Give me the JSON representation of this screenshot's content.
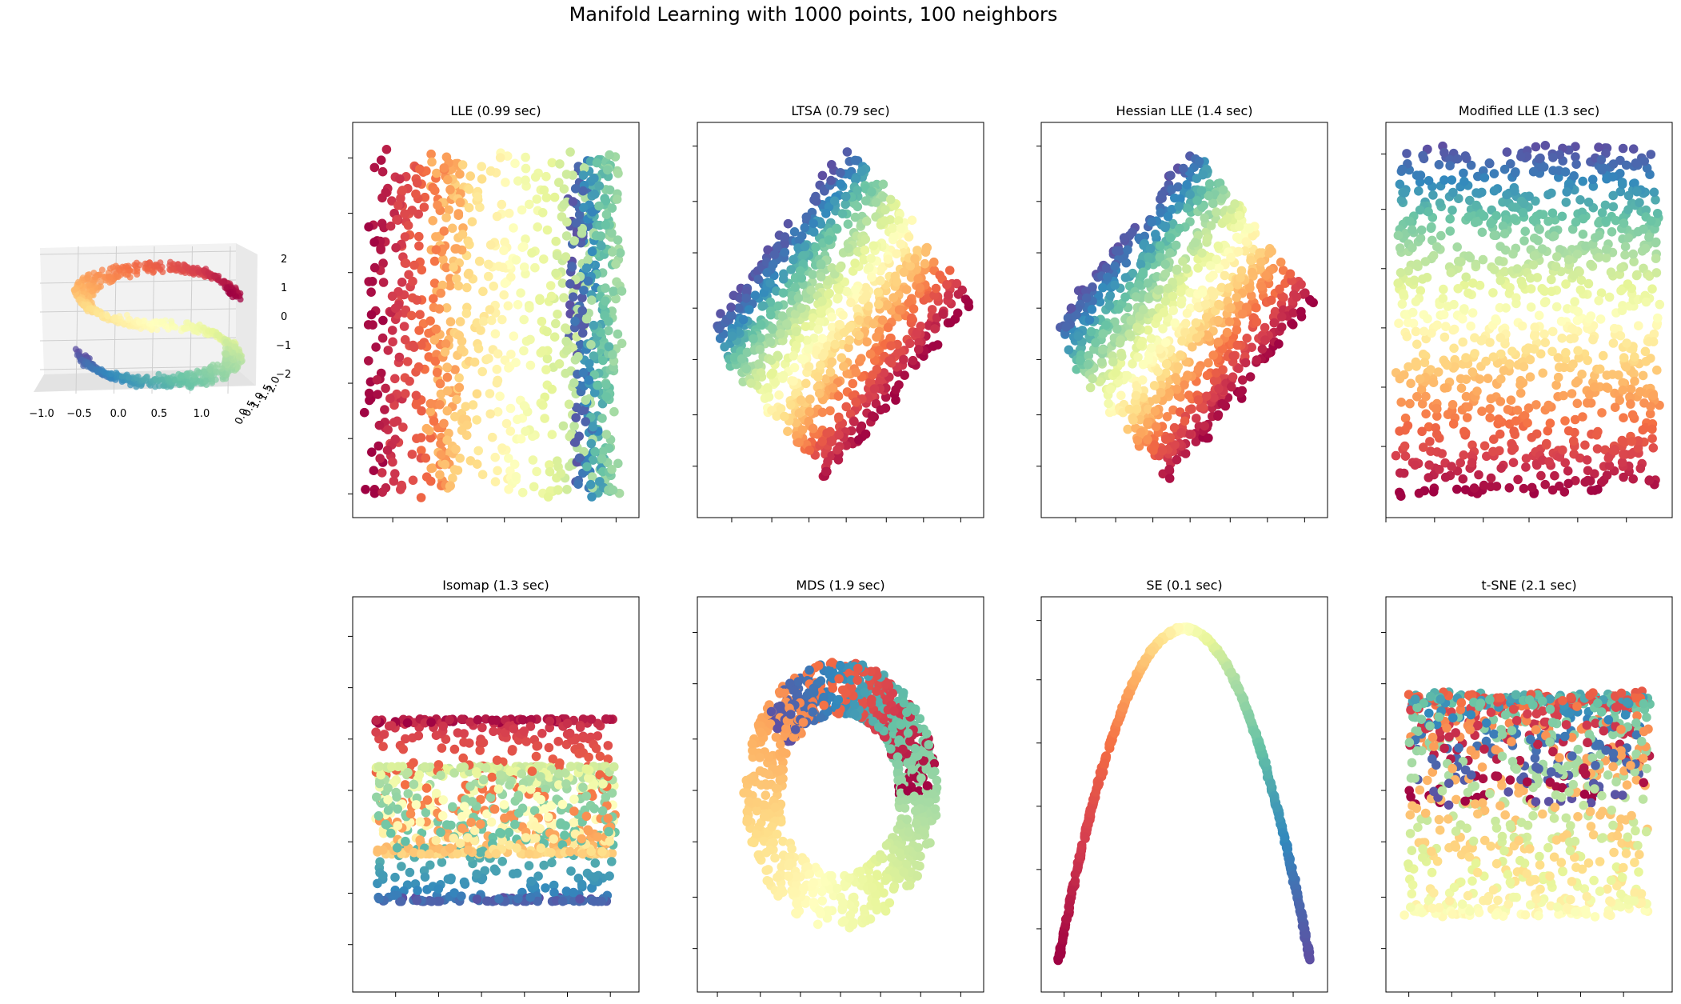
{
  "figure": {
    "title": "Manifold Learning with 1000 points, 100 neighbors"
  },
  "chart_data": [
    {
      "type": "scatter",
      "projection": "3d",
      "title": "",
      "x_ticks": [
        "−1.0",
        "−0.5",
        "0.0",
        "0.5",
        "1.0"
      ],
      "y_ticks": [
        "0.0",
        "0.5",
        "1.0",
        "1.5",
        "2.0"
      ],
      "z_ticks": [
        "−2",
        "−1",
        "0",
        "1",
        "2"
      ],
      "xlim": [
        -1.0,
        1.0
      ],
      "ylim": [
        0,
        2
      ],
      "zlim": [
        -2,
        2
      ],
      "colormap": "Spectral",
      "grid": true,
      "n_points": 1000,
      "shape": "S-curve"
    },
    {
      "type": "scatter",
      "title": "LLE (0.99 sec)",
      "n_points": 1000,
      "colormap": "Spectral",
      "pattern": "lle"
    },
    {
      "type": "scatter",
      "title": "LTSA (0.79 sec)",
      "n_points": 1000,
      "colormap": "Spectral",
      "pattern": "diamond"
    },
    {
      "type": "scatter",
      "title": "Hessian LLE (1.4 sec)",
      "n_points": 1000,
      "colormap": "Spectral",
      "pattern": "diamond"
    },
    {
      "type": "scatter",
      "title": "Modified LLE (1.3 sec)",
      "n_points": 1000,
      "colormap": "Spectral",
      "pattern": "mlle"
    },
    {
      "type": "scatter",
      "title": "Isomap (1.3 sec)",
      "n_points": 1000,
      "colormap": "Spectral",
      "pattern": "isomap"
    },
    {
      "type": "scatter",
      "title": "MDS (1.9 sec)",
      "n_points": 1000,
      "colormap": "Spectral",
      "pattern": "mds"
    },
    {
      "type": "scatter",
      "title": "SE (0.1 sec)",
      "n_points": 1000,
      "colormap": "Spectral",
      "pattern": "se"
    },
    {
      "type": "scatter",
      "title": "t-SNE (2.1 sec)",
      "n_points": 1000,
      "colormap": "Spectral",
      "pattern": "tsne"
    }
  ]
}
